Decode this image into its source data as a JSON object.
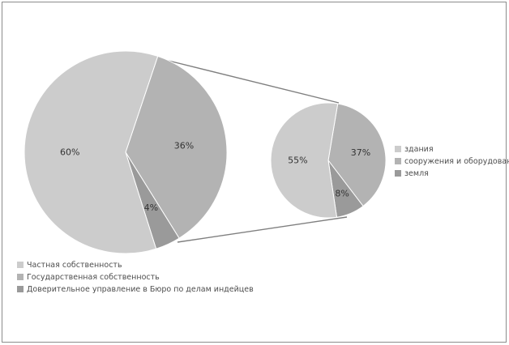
{
  "chart_data": [
    {
      "type": "pie",
      "title": "",
      "categories": [
        "Частная собственность",
        "Государственная собственность",
        "Доверительное управление в Бюро по делам индейцев"
      ],
      "values": [
        60,
        36,
        4
      ],
      "labels": [
        "60%",
        "36%",
        "4%"
      ],
      "colors": [
        "#cccccc",
        "#b3b3b3",
        "#9a9a9a"
      ],
      "legend": "bottom-left"
    },
    {
      "type": "pie",
      "title": "",
      "categories": [
        "здания",
        "сооружения и оборудование",
        "земля"
      ],
      "values": [
        55,
        37,
        8
      ],
      "labels": [
        "55%",
        "37%",
        "8%"
      ],
      "colors": [
        "#cccccc",
        "#b3b3b3",
        "#9a9a9a"
      ],
      "legend": "right"
    }
  ],
  "colors": {
    "connector": "#7f7f7f",
    "border": "#8c8c8c"
  }
}
